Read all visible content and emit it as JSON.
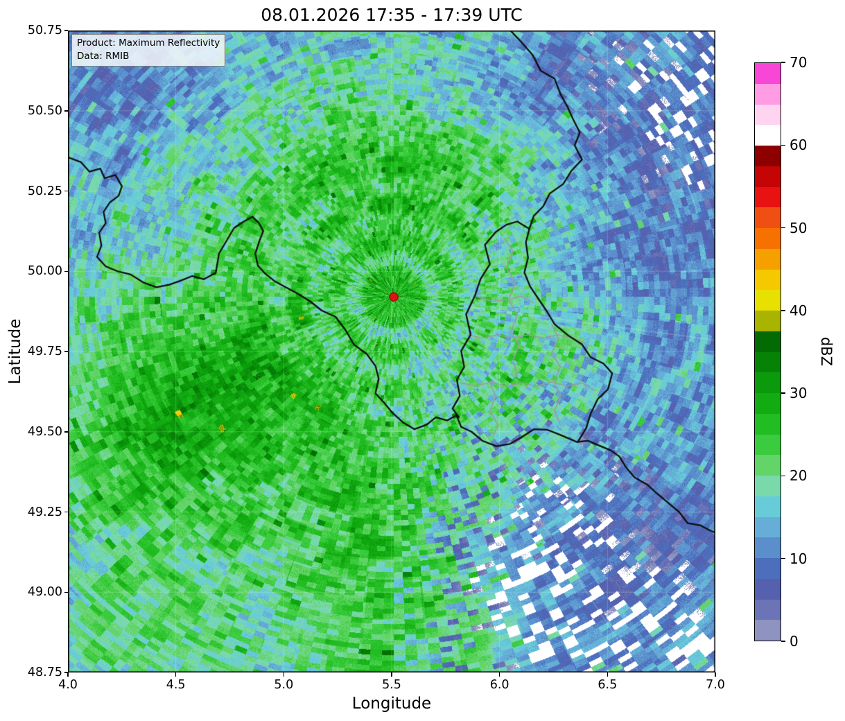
{
  "figure": {
    "title": "08.01.2026 17:35 - 17:39 UTC",
    "annotation": {
      "line1": "Product: Maximum Reflectivity",
      "line2": "Data: RMIB"
    },
    "x_axis": {
      "label": "Longitude",
      "ticks": [
        "4.0",
        "4.5",
        "5.0",
        "5.5",
        "6.0",
        "6.5",
        "7.0"
      ]
    },
    "y_axis": {
      "label": "Latitude",
      "ticks": [
        "50.75",
        "50.50",
        "50.25",
        "50.00",
        "49.75",
        "49.50",
        "49.25",
        "49.00",
        "48.75"
      ]
    },
    "colorbar": {
      "label": "dBZ",
      "ticks": [
        "70",
        "60",
        "50",
        "40",
        "30",
        "20",
        "10",
        "0"
      ]
    }
  },
  "chart_data": {
    "type": "heatmap",
    "title": "08.01.2026 17:35 - 17:39 UTC",
    "product": "Maximum Reflectivity",
    "data_source": "RMIB",
    "xlabel": "Longitude",
    "ylabel": "Latitude",
    "xlim": [
      4.0,
      7.0
    ],
    "ylim": [
      48.75,
      50.75
    ],
    "x_ticks": [
      4.0,
      4.5,
      5.0,
      5.5,
      6.0,
      6.5,
      7.0
    ],
    "y_ticks": [
      48.75,
      49.0,
      49.25,
      49.5,
      49.75,
      50.0,
      50.25,
      50.5,
      50.75
    ],
    "grid": true,
    "colorbar": {
      "label": "dBZ",
      "range": [
        0,
        70
      ],
      "ticks": [
        0,
        10,
        20,
        30,
        40,
        50,
        60,
        70
      ],
      "no_echo_color": "#ffffff",
      "colors": [
        "#8e93bf",
        "#6b74b6",
        "#5561ae",
        "#4d6ebc",
        "#5b8fcc",
        "#66aed8",
        "#68ccd8",
        "#79d9ab",
        "#63d467",
        "#3acb3e",
        "#22bd22",
        "#12ac12",
        "#0b9a0b",
        "#068306",
        "#046a04",
        "#a8b400",
        "#e8e000",
        "#f6c800",
        "#f6a000",
        "#f67100",
        "#f04f14",
        "#e81212",
        "#c50505",
        "#8e0000",
        "#ffffff",
        "#ffd4f0",
        "#ff9ce4",
        "#f846d7"
      ]
    },
    "radar_site": {
      "lon": 5.51,
      "lat": 49.92,
      "marker_color": "#e01212"
    },
    "field": {
      "base_dbz": 15.5,
      "km_per_deg_lon": 71.5,
      "km_per_deg_lat": 111.2,
      "blobs": [
        [
          4.55,
          49.6,
          0.42,
          0.26,
          9
        ],
        [
          4.3,
          49.47,
          0.3,
          0.22,
          5
        ],
        [
          4.95,
          49.72,
          0.3,
          0.2,
          4
        ],
        [
          5.35,
          50.3,
          0.48,
          0.22,
          6
        ],
        [
          5.78,
          50.22,
          0.28,
          0.18,
          4
        ],
        [
          5.45,
          49.95,
          0.45,
          0.35,
          5
        ],
        [
          5.45,
          49.05,
          0.3,
          0.38,
          6
        ],
        [
          4.45,
          48.92,
          0.38,
          0.2,
          5
        ],
        [
          6.05,
          49.72,
          0.22,
          0.18,
          5
        ],
        [
          5.15,
          49.3,
          0.35,
          0.25,
          3
        ],
        [
          5.9,
          48.85,
          0.45,
          0.15,
          3
        ],
        [
          6.85,
          50.55,
          0.45,
          0.3,
          -6
        ],
        [
          4.15,
          50.62,
          0.42,
          0.22,
          -5
        ],
        [
          6.75,
          49.05,
          0.45,
          0.35,
          -6
        ],
        [
          6.85,
          50.1,
          0.35,
          0.3,
          -4
        ],
        [
          6.3,
          48.95,
          0.3,
          0.25,
          -4
        ],
        [
          6.1,
          50.62,
          0.3,
          0.18,
          -3
        ]
      ],
      "holes": [
        [
          6.15,
          49.0,
          0.28,
          0.33,
          12
        ],
        [
          6.55,
          48.82,
          0.2,
          0.12,
          8
        ],
        [
          6.95,
          48.8,
          0.18,
          0.15,
          9
        ],
        [
          6.9,
          50.68,
          0.35,
          0.2,
          7
        ],
        [
          6.97,
          50.42,
          0.15,
          0.1,
          6
        ]
      ],
      "rings_km": [
        [
          13,
          3.5,
          5
        ],
        [
          26,
          4.5,
          4.5
        ],
        [
          39,
          5,
          3
        ]
      ],
      "spoke_az_deg": [
        -8,
        -58
      ]
    },
    "borders": {
      "black": [
        [
          [
            4.0,
            50.355
          ],
          [
            4.06,
            50.34
          ],
          [
            4.1,
            50.31
          ],
          [
            4.15,
            50.32
          ],
          [
            4.17,
            50.29
          ],
          [
            4.22,
            50.3
          ],
          [
            4.25,
            50.265
          ],
          [
            4.235,
            50.235
          ],
          [
            4.195,
            50.215
          ],
          [
            4.165,
            50.185
          ],
          [
            4.175,
            50.15
          ],
          [
            4.145,
            50.12
          ],
          [
            4.155,
            50.08
          ],
          [
            4.135,
            50.045
          ],
          [
            4.175,
            50.015
          ],
          [
            4.23,
            50.0
          ],
          [
            4.29,
            49.99
          ],
          [
            4.35,
            49.965
          ],
          [
            4.41,
            49.95
          ],
          [
            4.47,
            49.958
          ],
          [
            4.52,
            49.97
          ],
          [
            4.575,
            49.985
          ],
          [
            4.63,
            49.975
          ],
          [
            4.685,
            49.995
          ],
          [
            4.7,
            50.055
          ],
          [
            4.735,
            50.095
          ],
          [
            4.77,
            50.135
          ],
          [
            4.815,
            50.155
          ],
          [
            4.855,
            50.17
          ],
          [
            4.885,
            50.15
          ],
          [
            4.905,
            50.125
          ],
          [
            4.885,
            50.09
          ],
          [
            4.868,
            50.055
          ],
          [
            4.88,
            50.018
          ],
          [
            4.915,
            49.992
          ],
          [
            4.96,
            49.968
          ],
          [
            5.015,
            49.948
          ],
          [
            5.07,
            49.928
          ],
          [
            5.125,
            49.905
          ],
          [
            5.175,
            49.878
          ],
          [
            5.24,
            49.858
          ],
          [
            5.285,
            49.818
          ],
          [
            5.325,
            49.772
          ],
          [
            5.385,
            49.742
          ],
          [
            5.425,
            49.705
          ],
          [
            5.44,
            49.665
          ],
          [
            5.425,
            49.62
          ],
          [
            5.465,
            49.59
          ],
          [
            5.505,
            49.558
          ],
          [
            5.555,
            49.528
          ],
          [
            5.605,
            49.508
          ],
          [
            5.662,
            49.522
          ],
          [
            5.705,
            49.545
          ],
          [
            5.758,
            49.535
          ],
          [
            5.8,
            49.552
          ],
          [
            5.822,
            49.515
          ],
          [
            5.87,
            49.5
          ],
          [
            5.92,
            49.472
          ],
          [
            5.985,
            49.455
          ],
          [
            6.048,
            49.462
          ],
          [
            6.1,
            49.482
          ],
          [
            6.16,
            49.508
          ],
          [
            6.222,
            49.506
          ],
          [
            6.282,
            49.49
          ],
          [
            6.358,
            49.468
          ],
          [
            6.41,
            49.472
          ],
          [
            6.465,
            49.456
          ],
          [
            6.515,
            49.442
          ],
          [
            6.555,
            49.423
          ],
          [
            6.585,
            49.39
          ],
          [
            6.625,
            49.358
          ],
          [
            6.685,
            49.335
          ],
          [
            6.725,
            49.31
          ],
          [
            6.775,
            49.282
          ],
          [
            6.832,
            49.25
          ],
          [
            6.872,
            49.215
          ],
          [
            6.932,
            49.208
          ],
          [
            6.982,
            49.19
          ],
          [
            7.0,
            49.186
          ]
        ],
        [
          [
            6.05,
            50.75
          ],
          [
            6.1,
            50.715
          ],
          [
            6.155,
            50.672
          ],
          [
            6.19,
            50.625
          ],
          [
            6.255,
            50.6
          ],
          [
            6.282,
            50.552
          ],
          [
            6.315,
            50.512
          ],
          [
            6.342,
            50.472
          ],
          [
            6.372,
            50.432
          ],
          [
            6.348,
            50.392
          ],
          [
            6.382,
            50.348
          ],
          [
            6.332,
            50.312
          ],
          [
            6.295,
            50.272
          ],
          [
            6.232,
            50.242
          ],
          [
            6.202,
            50.202
          ],
          [
            6.158,
            50.172
          ],
          [
            6.138,
            50.132
          ],
          [
            6.122,
            50.09
          ],
          [
            6.132,
            50.042
          ],
          [
            6.115,
            49.996
          ],
          [
            6.142,
            49.952
          ],
          [
            6.182,
            49.912
          ],
          [
            6.222,
            49.872
          ],
          [
            6.255,
            49.835
          ],
          [
            6.318,
            49.8
          ],
          [
            6.382,
            49.772
          ],
          [
            6.422,
            49.732
          ],
          [
            6.482,
            49.712
          ],
          [
            6.522,
            49.682
          ],
          [
            6.502,
            49.632
          ],
          [
            6.455,
            49.602
          ],
          [
            6.422,
            49.556
          ],
          [
            6.402,
            49.512
          ],
          [
            6.362,
            49.468
          ]
        ],
        [
          [
            6.138,
            50.132
          ],
          [
            6.082,
            50.155
          ],
          [
            6.032,
            50.145
          ],
          [
            5.982,
            50.122
          ],
          [
            5.932,
            50.082
          ],
          [
            5.955,
            50.022
          ],
          [
            5.912,
            49.976
          ],
          [
            5.885,
            49.922
          ],
          [
            5.845,
            49.866
          ],
          [
            5.866,
            49.802
          ],
          [
            5.822,
            49.752
          ],
          [
            5.836,
            49.702
          ],
          [
            5.802,
            49.662
          ],
          [
            5.816,
            49.612
          ],
          [
            5.782,
            49.572
          ],
          [
            5.812,
            49.545
          ]
        ]
      ],
      "gray": [
        [
          [
            6.022,
            50.102
          ],
          [
            6.062,
            50.062
          ],
          [
            6.032,
            50.012
          ],
          [
            6.072,
            49.962
          ],
          [
            6.042,
            49.912
          ],
          [
            6.082,
            49.862
          ],
          [
            6.052,
            49.812
          ],
          [
            6.092,
            49.772
          ],
          [
            6.062,
            49.722
          ],
          [
            6.082,
            49.672
          ]
        ],
        [
          [
            5.892,
            49.922
          ],
          [
            5.962,
            49.906
          ],
          [
            6.042,
            49.912
          ],
          [
            6.102,
            49.922
          ],
          [
            6.158,
            49.902
          ]
        ],
        [
          [
            5.852,
            49.802
          ],
          [
            5.922,
            49.792
          ],
          [
            5.992,
            49.802
          ],
          [
            6.062,
            49.792
          ],
          [
            6.132,
            49.802
          ],
          [
            6.202,
            49.792
          ],
          [
            6.272,
            49.802
          ],
          [
            6.342,
            49.79
          ],
          [
            6.402,
            49.775
          ]
        ],
        [
          [
            5.822,
            49.652
          ],
          [
            5.892,
            49.642
          ],
          [
            5.962,
            49.655
          ],
          [
            6.032,
            49.642
          ],
          [
            6.102,
            49.652
          ],
          [
            6.172,
            49.642
          ],
          [
            6.242,
            49.655
          ],
          [
            6.312,
            49.642
          ],
          [
            6.382,
            49.652
          ],
          [
            6.442,
            49.628
          ]
        ],
        [
          [
            6.242,
            49.835
          ],
          [
            6.272,
            49.792
          ],
          [
            6.242,
            49.745
          ],
          [
            6.282,
            49.702
          ],
          [
            6.252,
            49.655
          ],
          [
            6.282,
            49.612
          ],
          [
            6.255,
            49.565
          ],
          [
            6.282,
            49.522
          ]
        ],
        [
          [
            5.952,
            49.655
          ],
          [
            5.982,
            49.612
          ],
          [
            5.955,
            49.565
          ],
          [
            5.992,
            49.522
          ],
          [
            5.972,
            49.488
          ]
        ]
      ]
    }
  }
}
